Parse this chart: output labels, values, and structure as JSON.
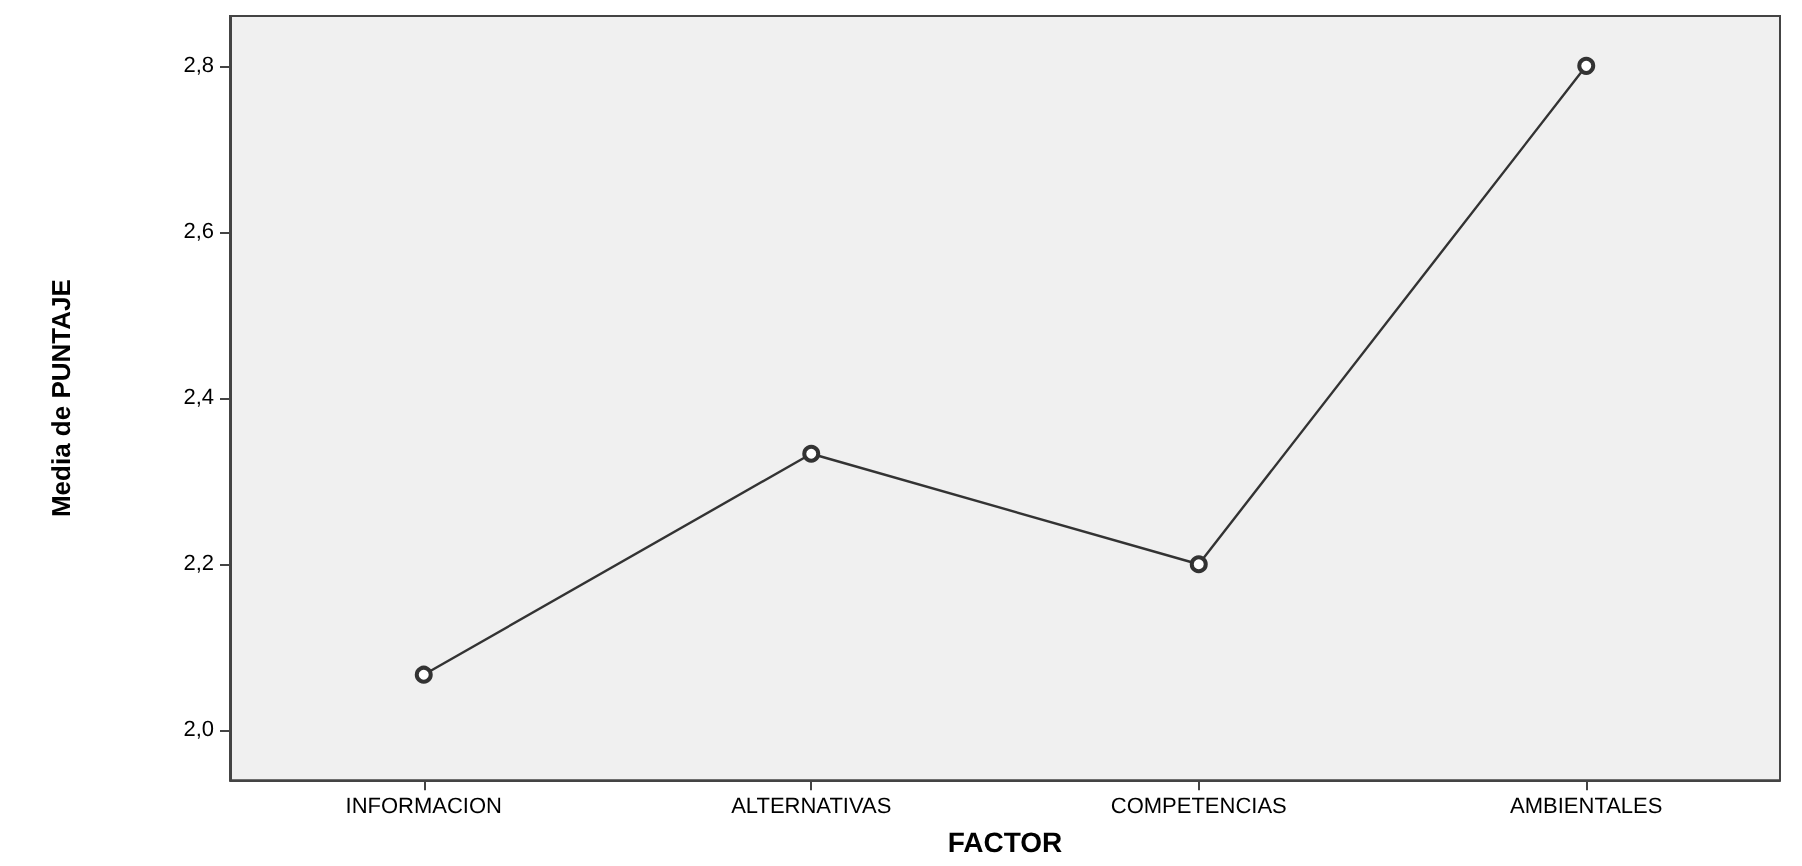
{
  "chart_data": {
    "type": "line",
    "xlabel": "FACTOR",
    "ylabel": "Media de PUNTAJE",
    "categories": [
      "INFORMACION",
      "ALTERNATIVAS",
      "COMPETENCIAS",
      "AMBIENTALES"
    ],
    "series": [
      {
        "color": "#333333",
        "values": [
          2.067,
          2.333,
          2.2,
          2.8
        ]
      }
    ],
    "ylim": [
      1.94,
      2.86
    ],
    "yticks": [
      {
        "value": 2.0,
        "label": "2,0"
      },
      {
        "value": 2.2,
        "label": "2,2"
      },
      {
        "value": 2.4,
        "label": "2,4"
      },
      {
        "value": 2.6,
        "label": "2,6"
      },
      {
        "value": 2.8,
        "label": "2,8"
      }
    ],
    "grid": false,
    "marker": "circle",
    "line_style": "solid"
  }
}
